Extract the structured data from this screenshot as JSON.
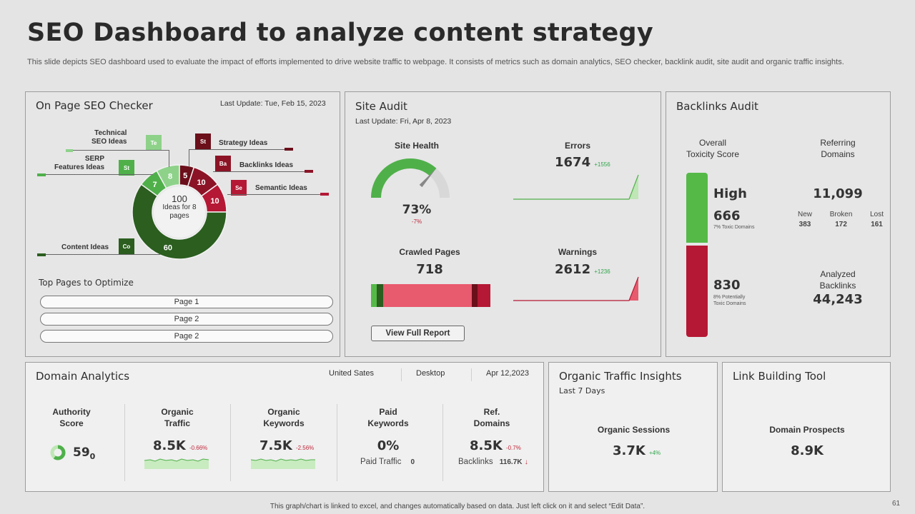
{
  "header": {
    "title": "SEO Dashboard to analyze content strategy",
    "subtitle": "This slide depicts SEO dashboard used to evaluate the impact of efforts implemented to drive website traffic to webpage. It consists of metrics such as domain analytics, SEO checker, backlink audit, site audit and organic traffic insights."
  },
  "seo_checker": {
    "title": "On Page SEO Checker",
    "last_update": "Last Update: Tue, Feb 15, 2023",
    "center_value": "100",
    "center_text_1": "Ideas for 8",
    "center_text_2": "pages",
    "segments": [
      {
        "label": "Technical SEO Ideas",
        "label_1": "Technical",
        "label_2": "SEO Ideas",
        "abbr": "Te",
        "value": 8,
        "color": "#8ed28a"
      },
      {
        "label": "SERP Features Ideas",
        "label_1": "SERP",
        "label_2": "Features Ideas",
        "abbr": "St",
        "value": 7,
        "color": "#4fb04a"
      },
      {
        "label": "Content Ideas",
        "abbr": "Co",
        "value": 60,
        "color": "#2b5e1f"
      },
      {
        "label": "Strategy Ideas",
        "abbr": "St",
        "value": 5,
        "color": "#6b0f1a"
      },
      {
        "label": "Backlinks Ideas",
        "abbr": "Ba",
        "value": 10,
        "color": "#8c1326"
      },
      {
        "label": "Semantic Ideas",
        "abbr": "Se",
        "value": 10,
        "color": "#b51834"
      }
    ],
    "top_pages_title": "Top Pages to Optimize",
    "pages": [
      "Page 1",
      "Page 2",
      "Page 2"
    ]
  },
  "site_audit": {
    "title": "Site Audit",
    "last_update": "Last Update: Fri, Apr 8, 2023",
    "health_label": "Site Health",
    "health_value": "73%",
    "health_fraction": 0.73,
    "health_delta": "-7%",
    "errors_label": "Errors",
    "errors_value": "1674",
    "errors_delta": "+1556",
    "crawled_label": "Crawled Pages",
    "crawled_value": "718",
    "warnings_label": "Warnings",
    "warnings_value": "2612",
    "warnings_delta": "+1236",
    "report_button": "View Full Report",
    "crawl_bar_colors": [
      "#55b948",
      "#2b5e1f",
      "#e85a6e",
      "#6b0f1a",
      "#b51834"
    ]
  },
  "backlinks": {
    "title": "Backlinks Audit",
    "toxicity_label_1": "Overall",
    "toxicity_label_2": "Toxicity Score",
    "toxicity_level": "High",
    "safe_count": "666",
    "safe_sub": "7% Toxic Domains",
    "toxic_count": "830",
    "toxic_sub_1": "8% Potentially",
    "toxic_sub_2": "Toxic Domains",
    "referring_label_1": "Referring",
    "referring_label_2": "Domains",
    "referring_value": "11,099",
    "new_label": "New",
    "new_value": "383",
    "broken_label": "Broken",
    "broken_value": "172",
    "lost_label": "Lost",
    "lost_value": "161",
    "analyzed_label_1": "Analyzed",
    "analyzed_label_2": "Backlinks",
    "analyzed_value": "44,243",
    "green": "#55b948",
    "red": "#b51834"
  },
  "domain": {
    "title": "Domain Analytics",
    "country": "United Sates",
    "device": "Desktop",
    "date": "Apr 12,2023",
    "authority_label_1": "Authority",
    "authority_label_2": "Score",
    "authority_value": "59",
    "authority_sub": "0",
    "traffic_label_1": "Organic",
    "traffic_label_2": "Traffic",
    "traffic_value": "8.5K",
    "traffic_delta": "-0.66%",
    "keywords_label_1": "Organic",
    "keywords_label_2": "Keywords",
    "keywords_value": "7.5K",
    "keywords_delta": "-2.56%",
    "paid_label_1": "Paid",
    "paid_label_2": "Keywords",
    "paid_value": "0%",
    "paid_traffic_label": "Paid Traffic",
    "paid_traffic_value": "0",
    "ref_label_1": "Ref.",
    "ref_label_2": "Domains",
    "ref_value": "8.5K",
    "ref_delta": "-0.7%",
    "backlinks_label": "Backlinks",
    "backlinks_value": "116.7K"
  },
  "organic": {
    "title": "Organic Traffic Insights",
    "period": "Last 7 Days",
    "sessions_label": "Organic Sessions",
    "sessions_value": "3.7K",
    "sessions_delta": "+4%"
  },
  "link_tool": {
    "title": "Link Building Tool",
    "prospects_label": "Domain Prospects",
    "prospects_value": "8.9K"
  },
  "footer": {
    "note": "This graph/chart is linked to excel, and changes automatically based on data. Just left click on it and select “Edit Data”.",
    "page_number": "61"
  }
}
